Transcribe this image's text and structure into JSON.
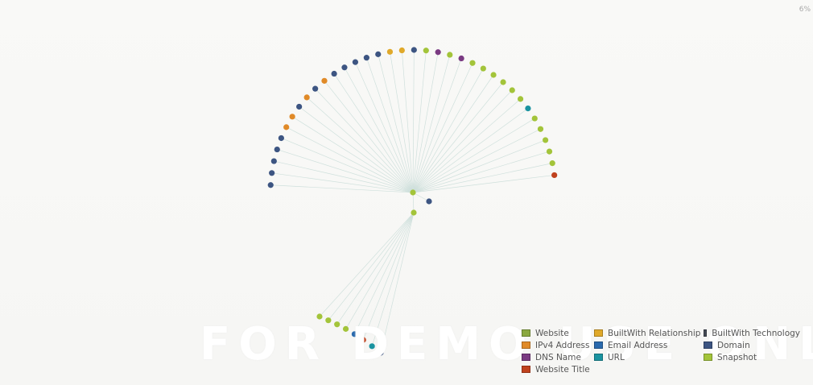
{
  "zoom_label": "6%",
  "watermark_text": "FOR DEMO USE ONLY",
  "legend": [
    {
      "label": "Website",
      "color": "#8aa83f",
      "icon": "website-swatch"
    },
    {
      "label": "BuiltWith Relationship",
      "color": "#e0a92a",
      "icon": "builtwith-relationship-swatch"
    },
    {
      "label": "BuiltWith Technology",
      "color": "#444a55",
      "icon": "builtwith-technology-swatch"
    },
    {
      "label": "IPv4 Address",
      "color": "#e08a28",
      "icon": "ipv4-address-swatch"
    },
    {
      "label": "Email Address",
      "color": "#2a6aad",
      "icon": "email-address-swatch"
    },
    {
      "label": "Domain",
      "color": "#3d5582",
      "icon": "domain-swatch"
    },
    {
      "label": "DNS Name",
      "color": "#7a3a82",
      "icon": "dns-name-swatch"
    },
    {
      "label": "URL",
      "color": "#1a93a0",
      "icon": "url-swatch"
    },
    {
      "label": "Snapshot",
      "color": "#a3c43a",
      "icon": "snapshot-swatch"
    },
    {
      "label": "Website Title",
      "color": "#c0421e",
      "icon": "website-title-swatch"
    }
  ],
  "graph": {
    "upper_fan_nodes": [
      "Domain",
      "Domain",
      "Domain",
      "Domain",
      "Domain",
      "IPv4 Address",
      "IPv4 Address",
      "Domain",
      "IPv4 Address",
      "Domain",
      "IPv4 Address",
      "Domain",
      "Domain",
      "Domain",
      "Domain",
      "Domain",
      "BuiltWith Relationship",
      "BuiltWith Relationship",
      "Domain",
      "Snapshot",
      "DNS Name",
      "Snapshot",
      "DNS Name",
      "Snapshot",
      "Snapshot",
      "Snapshot",
      "Snapshot",
      "Snapshot",
      "Snapshot",
      "URL",
      "Snapshot",
      "Snapshot",
      "Snapshot",
      "Snapshot",
      "Snapshot",
      "Website Title"
    ],
    "lower_fan_nodes": [
      "Snapshot",
      "Snapshot",
      "Snapshot",
      "Snapshot",
      "Email Address",
      "Website Title",
      "URL",
      "Domain"
    ],
    "hub_links": [
      "Domain",
      "Snapshot"
    ]
  }
}
